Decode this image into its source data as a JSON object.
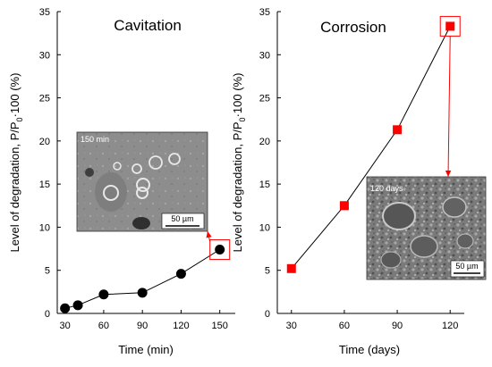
{
  "chart_data": [
    {
      "type": "scatter",
      "title": "Cavitation",
      "xlabel": "Time (min)",
      "ylabel_main": "Level of degradation, P/P",
      "ylabel_sub": "0",
      "ylabel_tail": "·100 (%)",
      "x_ticks": [
        "30",
        "60",
        "90",
        "120",
        "150"
      ],
      "y_ticks": [
        "0",
        "5",
        "10",
        "15",
        "20",
        "25",
        "30",
        "35"
      ],
      "xlim": [
        24,
        162
      ],
      "ylim": [
        0,
        35
      ],
      "grid": false,
      "marker": "circle",
      "marker_color": "#000000",
      "line_color": "#000000",
      "series": [
        {
          "x": [
            30,
            40,
            60,
            90,
            120,
            150
          ],
          "y": [
            0.6,
            0.95,
            2.2,
            2.4,
            4.6,
            7.4
          ]
        }
      ],
      "highlighted_point": {
        "x": 150,
        "y": 7.4
      },
      "inset": {
        "caption": "150 min",
        "scale_bar": "50 µm"
      }
    },
    {
      "type": "scatter",
      "title": "Corrosion",
      "xlabel": "Time (days)",
      "ylabel_main": "Level of degradation, P/P",
      "ylabel_sub": "0",
      "ylabel_tail": "·100 (%)",
      "x_ticks": [
        "30",
        "60",
        "90",
        "120"
      ],
      "y_ticks": [
        "0",
        "5",
        "10",
        "15",
        "20",
        "25",
        "30",
        "35"
      ],
      "xlim": [
        22,
        128
      ],
      "ylim": [
        0,
        35
      ],
      "grid": false,
      "marker": "square",
      "marker_color": "#ff0000",
      "line_color": "#000000",
      "series": [
        {
          "x": [
            30,
            60,
            90,
            120
          ],
          "y": [
            5.2,
            12.5,
            21.3,
            33.3
          ]
        }
      ],
      "highlighted_point": {
        "x": 120,
        "y": 33.3
      },
      "inset": {
        "caption": "120 days",
        "scale_bar": "50 µm"
      }
    }
  ],
  "colors": {
    "highlight": "#ff0000",
    "axes": "#000000"
  }
}
